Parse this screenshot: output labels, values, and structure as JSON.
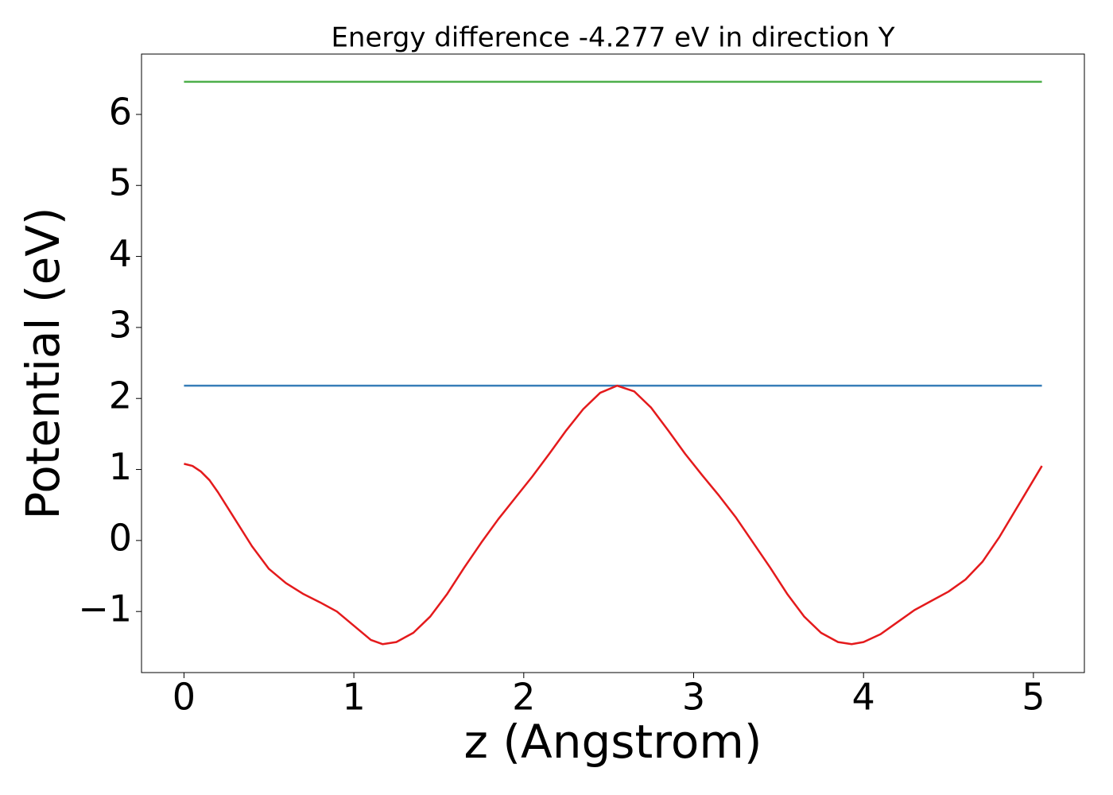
{
  "chart_data": {
    "type": "line",
    "title": "Energy difference -4.277 eV in direction Y",
    "xlabel": "z (Angstrom)",
    "ylabel": "Potential (eV)",
    "xlim": [
      -0.25,
      5.3
    ],
    "ylim": [
      -1.86,
      6.85
    ],
    "xticks": [
      0,
      1,
      2,
      3,
      4,
      5
    ],
    "yticks": [
      {
        "value": -1,
        "label": "−1"
      },
      0,
      1,
      2,
      3,
      4,
      5,
      6
    ],
    "grid": false,
    "series": [
      {
        "color": "#4daf4a",
        "x": [
          0,
          5.05
        ],
        "values": [
          6.46,
          6.46
        ]
      },
      {
        "color": "#377eb8",
        "x": [
          0,
          5.05
        ],
        "values": [
          2.18,
          2.18
        ]
      },
      {
        "color": "#e41a1c",
        "x": [
          0,
          0.05,
          0.1,
          0.15,
          0.2,
          0.3,
          0.4,
          0.5,
          0.6,
          0.7,
          0.8,
          0.9,
          1.0,
          1.1,
          1.17,
          1.25,
          1.35,
          1.45,
          1.55,
          1.65,
          1.75,
          1.85,
          1.95,
          2.05,
          2.15,
          2.25,
          2.35,
          2.45,
          2.55,
          2.65,
          2.75,
          2.85,
          2.95,
          3.05,
          3.15,
          3.25,
          3.35,
          3.45,
          3.55,
          3.65,
          3.75,
          3.85,
          3.93,
          4.0,
          4.1,
          4.2,
          4.3,
          4.4,
          4.5,
          4.6,
          4.7,
          4.8,
          4.9,
          4.95,
          5.0,
          5.05
        ],
        "values": [
          1.08,
          1.05,
          0.97,
          0.85,
          0.68,
          0.3,
          -0.08,
          -0.4,
          -0.6,
          -0.75,
          -0.87,
          -1.0,
          -1.2,
          -1.4,
          -1.46,
          -1.43,
          -1.3,
          -1.07,
          -0.75,
          -0.38,
          -0.03,
          0.3,
          0.6,
          0.9,
          1.22,
          1.55,
          1.85,
          2.08,
          2.18,
          2.1,
          1.87,
          1.55,
          1.22,
          0.92,
          0.63,
          0.32,
          -0.03,
          -0.38,
          -0.75,
          -1.07,
          -1.3,
          -1.43,
          -1.46,
          -1.43,
          -1.32,
          -1.15,
          -0.98,
          -0.85,
          -0.72,
          -0.55,
          -0.3,
          0.05,
          0.45,
          0.65,
          0.85,
          1.05
        ]
      }
    ]
  }
}
